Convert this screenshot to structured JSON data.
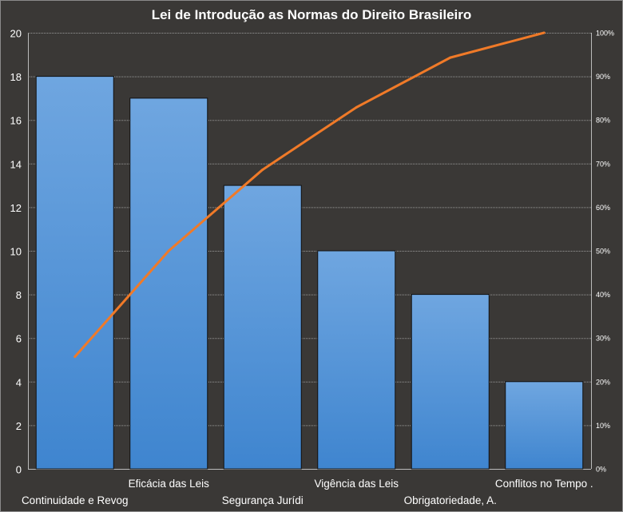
{
  "chart_data": {
    "type": "bar",
    "title": "Lei de Introdução as Normas do Direito Brasileiro",
    "categories": [
      "Continuidade e Revog",
      "Eficácia das Leis",
      "Segurança Jurídi",
      "Vigência das Leis",
      "Obrigatoriedade, A.",
      "Conflitos no Tempo ."
    ],
    "values": [
      18,
      17,
      13,
      10,
      8,
      4
    ],
    "cumulative_percent": [
      25.7,
      50.0,
      68.6,
      82.9,
      94.3,
      100.0
    ],
    "ylim": [
      0,
      20
    ],
    "y_ticks": [
      "0",
      "2",
      "4",
      "6",
      "8",
      "10",
      "12",
      "14",
      "16",
      "18",
      "20"
    ],
    "y2lim": [
      0,
      100
    ],
    "y2_ticks": [
      "0%",
      "10%",
      "20%",
      "30%",
      "40%",
      "50%",
      "60%",
      "70%",
      "80%",
      "90%",
      "100%"
    ],
    "grid": true,
    "colors": {
      "bar": "#4f8fd6",
      "bar_top": "#6fa6e0",
      "line": "#f07a28",
      "background": "#3a3836"
    }
  }
}
